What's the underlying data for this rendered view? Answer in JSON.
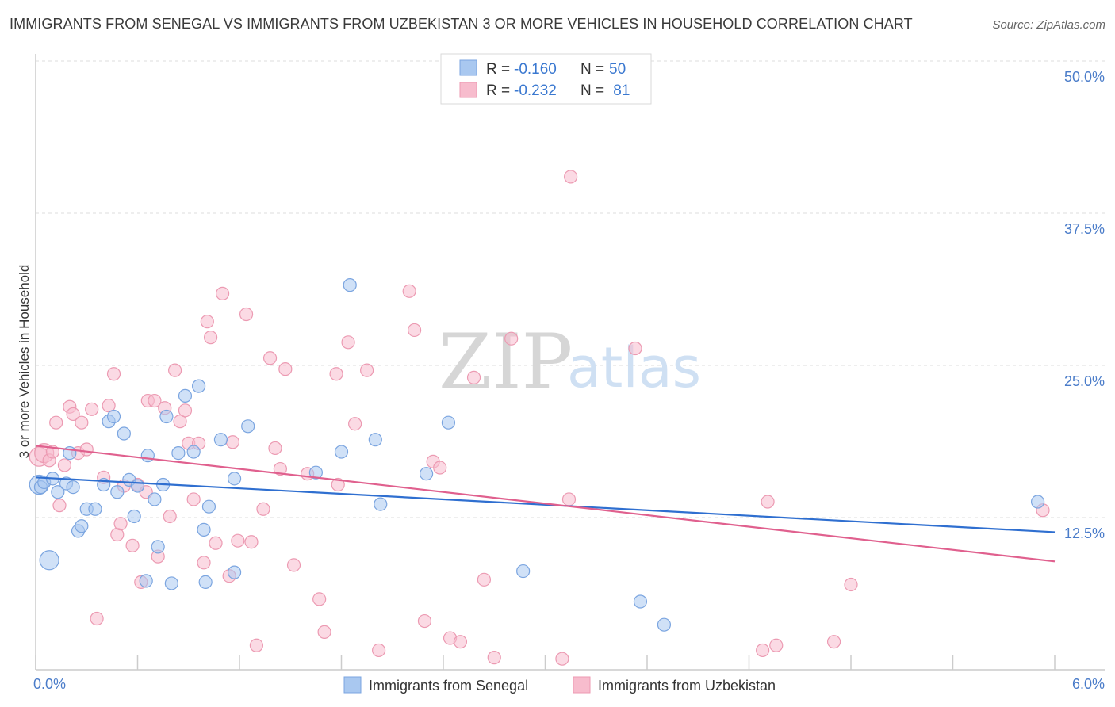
{
  "title": "IMMIGRANTS FROM SENEGAL VS IMMIGRANTS FROM UZBEKISTAN 3 OR MORE VEHICLES IN HOUSEHOLD CORRELATION CHART",
  "source": "Source: ZipAtlas.com",
  "watermark": {
    "zip": "ZIP",
    "atlas": "atlas"
  },
  "legend": {
    "rows": [
      {
        "r_label": "R =",
        "r_value": "-0.160",
        "n_label": "N =",
        "n_value": "50",
        "color": "#a9c8f0",
        "stroke": "#7ba5e0"
      },
      {
        "r_label": "R =",
        "r_value": "-0.232",
        "n_label": "N =",
        "n_value": " 81",
        "color": "#f7bccd",
        "stroke": "#ec9ab2"
      }
    ]
  },
  "bottom_legend": [
    {
      "label": "Immigrants from Senegal",
      "color": "#a9c8f0",
      "stroke": "#7ba5e0"
    },
    {
      "label": "Immigrants from Uzbekistan",
      "color": "#f7bccd",
      "stroke": "#ec9ab2"
    }
  ],
  "chart_data": {
    "type": "scatter",
    "title": "IMMIGRANTS FROM SENEGAL VS IMMIGRANTS FROM UZBEKISTAN 3 OR MORE VEHICLES IN HOUSEHOLD CORRELATION CHART",
    "xlabel": "",
    "ylabel": "3 or more Vehicles in Household",
    "xlim": [
      0,
      6
    ],
    "ylim": [
      0,
      50
    ],
    "x_tick_labels": [
      "0.0%",
      "6.0%"
    ],
    "y_ticks": [
      12.5,
      25.0,
      37.5,
      50.0
    ],
    "y_tick_labels": [
      "12.5%",
      "25.0%",
      "37.5%",
      "50.0%"
    ],
    "grid": true,
    "legend_position": "top-center",
    "series": [
      {
        "name": "Immigrants from Senegal",
        "color": "#a9c8f0",
        "stroke": "#7ba5e0",
        "line_color": "#2f6fd0",
        "trend": {
          "x": [
            0,
            6
          ],
          "y": [
            15.8,
            11.3
          ]
        },
        "points": [
          [
            0.02,
            15.2
          ],
          [
            0.03,
            15.0
          ],
          [
            0.05,
            15.4
          ],
          [
            0.08,
            9.0
          ],
          [
            0.1,
            15.7
          ],
          [
            0.13,
            14.6
          ],
          [
            0.18,
            15.3
          ],
          [
            0.2,
            17.8
          ],
          [
            0.22,
            15.0
          ],
          [
            0.25,
            11.4
          ],
          [
            0.27,
            11.8
          ],
          [
            0.3,
            13.2
          ],
          [
            0.35,
            13.2
          ],
          [
            0.4,
            15.2
          ],
          [
            0.43,
            20.4
          ],
          [
            0.46,
            20.8
          ],
          [
            0.48,
            14.6
          ],
          [
            0.52,
            19.4
          ],
          [
            0.55,
            15.6
          ],
          [
            0.58,
            12.6
          ],
          [
            0.6,
            15.1
          ],
          [
            0.65,
            7.3
          ],
          [
            0.66,
            17.6
          ],
          [
            0.7,
            14.0
          ],
          [
            0.72,
            10.1
          ],
          [
            0.75,
            15.2
          ],
          [
            0.77,
            20.8
          ],
          [
            0.8,
            7.1
          ],
          [
            0.84,
            17.8
          ],
          [
            0.88,
            22.5
          ],
          [
            0.93,
            17.9
          ],
          [
            0.96,
            23.3
          ],
          [
            0.99,
            11.5
          ],
          [
            1.0,
            7.2
          ],
          [
            1.02,
            13.4
          ],
          [
            1.09,
            18.9
          ],
          [
            1.17,
            8.0
          ],
          [
            1.17,
            15.7
          ],
          [
            1.25,
            20.0
          ],
          [
            1.65,
            16.2
          ],
          [
            1.8,
            17.9
          ],
          [
            1.85,
            31.6
          ],
          [
            2.0,
            18.9
          ],
          [
            2.03,
            13.6
          ],
          [
            2.3,
            16.1
          ],
          [
            2.43,
            20.3
          ],
          [
            2.87,
            8.1
          ],
          [
            3.56,
            5.6
          ],
          [
            3.7,
            3.7
          ],
          [
            5.9,
            13.8
          ]
        ]
      },
      {
        "name": "Immigrants from Uzbekistan",
        "color": "#f7bccd",
        "stroke": "#ec9ab2",
        "line_color": "#e0608e",
        "trend": {
          "x": [
            0,
            6
          ],
          "y": [
            18.4,
            8.9
          ]
        },
        "points": [
          [
            0.02,
            17.5
          ],
          [
            0.05,
            17.8
          ],
          [
            0.08,
            17.2
          ],
          [
            0.1,
            17.9
          ],
          [
            0.12,
            20.3
          ],
          [
            0.14,
            13.5
          ],
          [
            0.17,
            16.8
          ],
          [
            0.2,
            21.6
          ],
          [
            0.22,
            21.0
          ],
          [
            0.25,
            17.8
          ],
          [
            0.27,
            20.3
          ],
          [
            0.3,
            18.1
          ],
          [
            0.33,
            21.4
          ],
          [
            0.36,
            4.2
          ],
          [
            0.4,
            15.8
          ],
          [
            0.43,
            21.7
          ],
          [
            0.46,
            24.3
          ],
          [
            0.48,
            11.1
          ],
          [
            0.5,
            12.0
          ],
          [
            0.52,
            15.1
          ],
          [
            0.57,
            10.2
          ],
          [
            0.6,
            15.2
          ],
          [
            0.62,
            7.2
          ],
          [
            0.65,
            14.6
          ],
          [
            0.66,
            22.1
          ],
          [
            0.7,
            22.1
          ],
          [
            0.72,
            9.3
          ],
          [
            0.76,
            21.5
          ],
          [
            0.79,
            12.6
          ],
          [
            0.82,
            24.6
          ],
          [
            0.85,
            20.4
          ],
          [
            0.88,
            21.3
          ],
          [
            0.9,
            18.6
          ],
          [
            0.93,
            14.0
          ],
          [
            0.96,
            18.6
          ],
          [
            0.99,
            8.8
          ],
          [
            1.01,
            28.6
          ],
          [
            1.03,
            27.3
          ],
          [
            1.06,
            10.4
          ],
          [
            1.1,
            30.9
          ],
          [
            1.14,
            7.7
          ],
          [
            1.16,
            18.7
          ],
          [
            1.19,
            10.6
          ],
          [
            1.24,
            29.2
          ],
          [
            1.27,
            10.5
          ],
          [
            1.3,
            2.0
          ],
          [
            1.34,
            13.2
          ],
          [
            1.38,
            25.6
          ],
          [
            1.41,
            18.2
          ],
          [
            1.44,
            16.5
          ],
          [
            1.47,
            24.7
          ],
          [
            1.52,
            8.6
          ],
          [
            1.6,
            16.1
          ],
          [
            1.67,
            5.8
          ],
          [
            1.7,
            3.1
          ],
          [
            1.77,
            24.3
          ],
          [
            1.78,
            15.2
          ],
          [
            1.84,
            26.9
          ],
          [
            1.88,
            20.2
          ],
          [
            1.95,
            24.6
          ],
          [
            2.02,
            1.6
          ],
          [
            2.2,
            31.1
          ],
          [
            2.23,
            27.9
          ],
          [
            2.29,
            4.0
          ],
          [
            2.34,
            17.1
          ],
          [
            2.38,
            16.6
          ],
          [
            2.44,
            2.6
          ],
          [
            2.5,
            2.3
          ],
          [
            2.58,
            24.0
          ],
          [
            2.64,
            7.4
          ],
          [
            2.7,
            1.0
          ],
          [
            2.8,
            27.2
          ],
          [
            3.1,
            0.9
          ],
          [
            3.14,
            14.0
          ],
          [
            3.15,
            40.5
          ],
          [
            3.53,
            26.4
          ],
          [
            4.28,
            1.6
          ],
          [
            4.31,
            13.8
          ],
          [
            4.36,
            2.0
          ],
          [
            4.7,
            2.3
          ],
          [
            4.8,
            7.0
          ],
          [
            5.93,
            13.1
          ]
        ]
      }
    ]
  }
}
